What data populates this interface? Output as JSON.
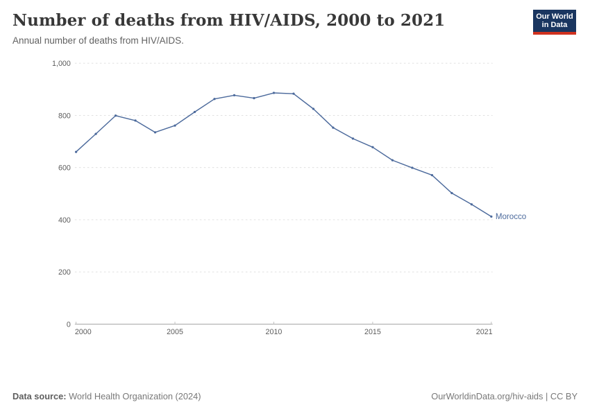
{
  "header": {
    "title": "Number of deaths from HIV/AIDS, 2000 to 2021",
    "subtitle": "Annual number of deaths from HIV/AIDS.",
    "logo": {
      "line1": "Our World",
      "line2": "in Data"
    }
  },
  "chart_data": {
    "type": "line",
    "title": "Number of deaths from HIV/AIDS, 2000 to 2021",
    "subtitle": "Annual number of deaths from HIV/AIDS.",
    "xlabel": "",
    "ylabel": "",
    "xlim": [
      2000,
      2021
    ],
    "ylim": [
      0,
      1000
    ],
    "x_ticks": [
      2000,
      2005,
      2010,
      2015,
      2021
    ],
    "y_ticks": [
      0,
      200,
      400,
      600,
      800,
      1000
    ],
    "y_tick_labels": [
      "0",
      "200",
      "400",
      "600",
      "800",
      "1,000"
    ],
    "grid": "horizontal-dashed",
    "legend_position": "end-of-line-label",
    "series": [
      {
        "name": "Morocco",
        "color": "#4c6a9c",
        "x": [
          2000,
          2001,
          2002,
          2003,
          2004,
          2005,
          2006,
          2007,
          2008,
          2009,
          2010,
          2011,
          2012,
          2013,
          2014,
          2015,
          2016,
          2017,
          2018,
          2019,
          2020,
          2021
        ],
        "values": [
          660,
          729,
          799,
          780,
          735,
          761,
          813,
          863,
          877,
          866,
          886,
          883,
          825,
          753,
          711,
          678,
          628,
          599,
          571,
          502,
          459,
          412
        ]
      }
    ]
  },
  "footer": {
    "source_label": "Data source:",
    "source_value": " World Health Organization (2024)",
    "credit": "OurWorldinData.org/hiv-aids | CC BY"
  },
  "colors": {
    "line": "#4c6a9c",
    "grid": "#dcdcdc",
    "axis": "#9a9a9a",
    "tick": "#b9b9b9",
    "logo_navy": "#1a3660",
    "logo_red": "#d0321f"
  }
}
